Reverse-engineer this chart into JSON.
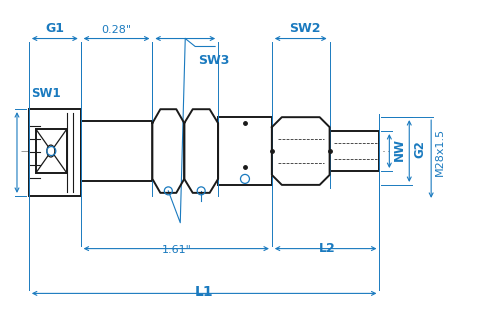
{
  "bg_color": "#ffffff",
  "line_color": "#1a1a1a",
  "dim_color": "#1a7abf",
  "fig_width": 4.8,
  "fig_height": 3.16,
  "dpi": 100,
  "labels": {
    "L1": "L1",
    "L2": "L2",
    "SW1": "SW1",
    "SW2": "SW2",
    "SW3": "SW3",
    "G1": "G1",
    "G2": "G2",
    "NW": "NW",
    "M28x15": "M28x1.5",
    "dim_161": "1.61\"",
    "dim_028": "0.28\""
  }
}
